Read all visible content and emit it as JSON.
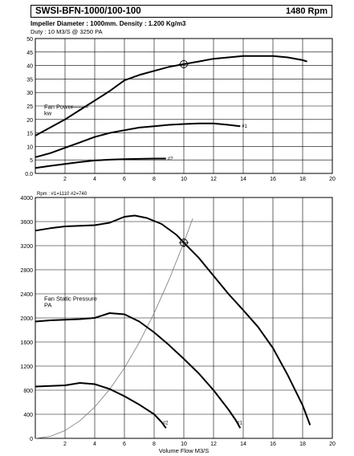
{
  "header": {
    "title": "SWSI-BFN-1000/100-100",
    "speed": "1480 Rpm",
    "impeller": "Impeller Diameter : 1000mm.  Density : 1.200 Kg/m3",
    "duty": "Duty : 10 M3/S @ 3250 PA"
  },
  "chart_data": [
    {
      "type": "line",
      "ylabel": "Fan Power",
      "yunit": "kw",
      "xlim": [
        0,
        20
      ],
      "ylim": [
        0,
        50
      ],
      "x_ticks": [
        2,
        4,
        6,
        8,
        10,
        12,
        14,
        16,
        18,
        20
      ],
      "y_ticks": [
        0.0,
        5,
        10,
        15,
        20,
        25,
        30,
        35,
        40,
        45,
        50
      ],
      "y_tick_labels": [
        "0.0",
        "5",
        "10",
        "15",
        "20",
        "25",
        "30",
        "35",
        "40",
        "45",
        "50"
      ],
      "grid": true,
      "duty_point": {
        "x": 10,
        "y": 40.5
      },
      "series": [
        {
          "name": "",
          "points": [
            [
              0,
              14
            ],
            [
              1,
              17
            ],
            [
              2,
              20
            ],
            [
              3,
              23.5
            ],
            [
              4,
              27
            ],
            [
              5,
              30.5
            ],
            [
              6,
              34.5
            ],
            [
              7,
              36.5
            ],
            [
              8,
              38
            ],
            [
              9,
              39.5
            ],
            [
              10,
              40.5
            ],
            [
              11,
              41.5
            ],
            [
              12,
              42.5
            ],
            [
              13,
              43
            ],
            [
              14,
              43.5
            ],
            [
              15,
              43.5
            ],
            [
              16,
              43.5
            ],
            [
              17,
              43
            ],
            [
              18,
              42
            ],
            [
              18.3,
              41.5
            ]
          ]
        },
        {
          "name": "#1",
          "points": [
            [
              0,
              6
            ],
            [
              1,
              7.5
            ],
            [
              2,
              9.5
            ],
            [
              3,
              11.5
            ],
            [
              4,
              13.5
            ],
            [
              5,
              15
            ],
            [
              6,
              16
            ],
            [
              7,
              17
            ],
            [
              8,
              17.5
            ],
            [
              9,
              18
            ],
            [
              10,
              18.3
            ],
            [
              11,
              18.5
            ],
            [
              12,
              18.5
            ],
            [
              13,
              18
            ],
            [
              13.8,
              17.5
            ]
          ]
        },
        {
          "name": "#2",
          "points": [
            [
              0,
              2
            ],
            [
              1,
              2.8
            ],
            [
              2,
              3.5
            ],
            [
              3,
              4.2
            ],
            [
              4,
              4.8
            ],
            [
              5,
              5.1
            ],
            [
              6,
              5.3
            ],
            [
              7,
              5.4
            ],
            [
              8,
              5.5
            ],
            [
              8.8,
              5.5
            ]
          ]
        }
      ]
    },
    {
      "type": "line",
      "annotation": "Rpm : #1=1110 #2=740",
      "ylabel": "Fan Static Pressure",
      "yunit": "PA",
      "xlabel": "Volume Flow M3/S",
      "xlim": [
        0,
        20
      ],
      "ylim": [
        0,
        4000
      ],
      "x_ticks": [
        2,
        4,
        6,
        8,
        10,
        12,
        14,
        16,
        18,
        20
      ],
      "y_ticks": [
        0,
        400,
        800,
        1200,
        1600,
        2000,
        2400,
        2800,
        3200,
        3600,
        4000
      ],
      "grid": true,
      "duty_point": {
        "x": 10,
        "y": 3250
      },
      "system_curve": {
        "equation": "P = 32.5 * Q^2",
        "points": [
          [
            0,
            0
          ],
          [
            1,
            32.5
          ],
          [
            2,
            130
          ],
          [
            3,
            292.5
          ],
          [
            4,
            520
          ],
          [
            5,
            812.5
          ],
          [
            6,
            1170
          ],
          [
            7,
            1592.5
          ],
          [
            8,
            2080
          ],
          [
            9,
            2632.5
          ],
          [
            10,
            3250
          ],
          [
            10.6,
            3651.7
          ]
        ]
      },
      "series": [
        {
          "name": "",
          "points": [
            [
              0,
              3450
            ],
            [
              1,
              3490
            ],
            [
              2,
              3520
            ],
            [
              3,
              3530
            ],
            [
              4,
              3540
            ],
            [
              5,
              3580
            ],
            [
              6,
              3680
            ],
            [
              6.7,
              3700
            ],
            [
              7.5,
              3660
            ],
            [
              8.5,
              3560
            ],
            [
              9.5,
              3380
            ],
            [
              10,
              3250
            ],
            [
              11,
              3000
            ],
            [
              12,
              2700
            ],
            [
              13,
              2400
            ],
            [
              14,
              2130
            ],
            [
              15,
              1850
            ],
            [
              16,
              1500
            ],
            [
              17,
              1050
            ],
            [
              18,
              550
            ],
            [
              18.5,
              220
            ]
          ]
        },
        {
          "name": "#1",
          "points": [
            [
              0,
              1940
            ],
            [
              1,
              1960
            ],
            [
              2,
              1970
            ],
            [
              3,
              1980
            ],
            [
              4,
              2000
            ],
            [
              5,
              2080
            ],
            [
              6,
              2060
            ],
            [
              7,
              1940
            ],
            [
              8,
              1760
            ],
            [
              9,
              1550
            ],
            [
              10,
              1320
            ],
            [
              11,
              1080
            ],
            [
              12,
              800
            ],
            [
              13,
              480
            ],
            [
              13.5,
              300
            ],
            [
              13.8,
              170
            ]
          ]
        },
        {
          "name": "#2",
          "points": [
            [
              0,
              860
            ],
            [
              1,
              870
            ],
            [
              2,
              880
            ],
            [
              3,
              920
            ],
            [
              4,
              900
            ],
            [
              5,
              820
            ],
            [
              6,
              700
            ],
            [
              7,
              560
            ],
            [
              8,
              400
            ],
            [
              8.5,
              270
            ],
            [
              8.8,
              170
            ]
          ]
        }
      ]
    }
  ],
  "colors": {
    "line": "#000000",
    "grid": "#000000",
    "system": "#777777"
  }
}
